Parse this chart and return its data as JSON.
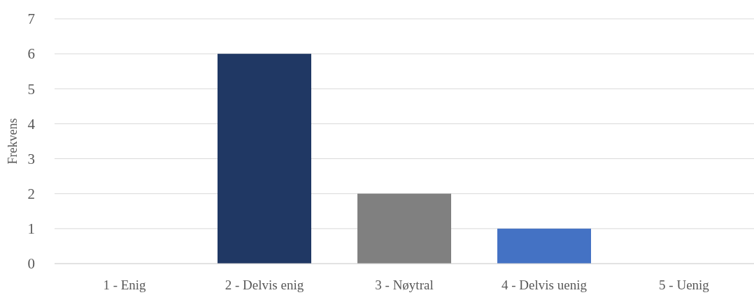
{
  "chart_data": {
    "type": "bar",
    "ylabel": "Frekvens",
    "categories": [
      "1 - Enig",
      "2 - Delvis enig",
      "3 - Nøytral",
      "4 - Delvis uenig",
      "5 - Uenig"
    ],
    "values": [
      0,
      6,
      2,
      1,
      0
    ],
    "colors": [
      "#4472c4",
      "#203864",
      "#808080",
      "#4472c4",
      "#4472c4"
    ],
    "ylim": [
      0,
      7
    ],
    "yticks": [
      0,
      1,
      2,
      3,
      4,
      5,
      6,
      7
    ],
    "grid": "y"
  }
}
